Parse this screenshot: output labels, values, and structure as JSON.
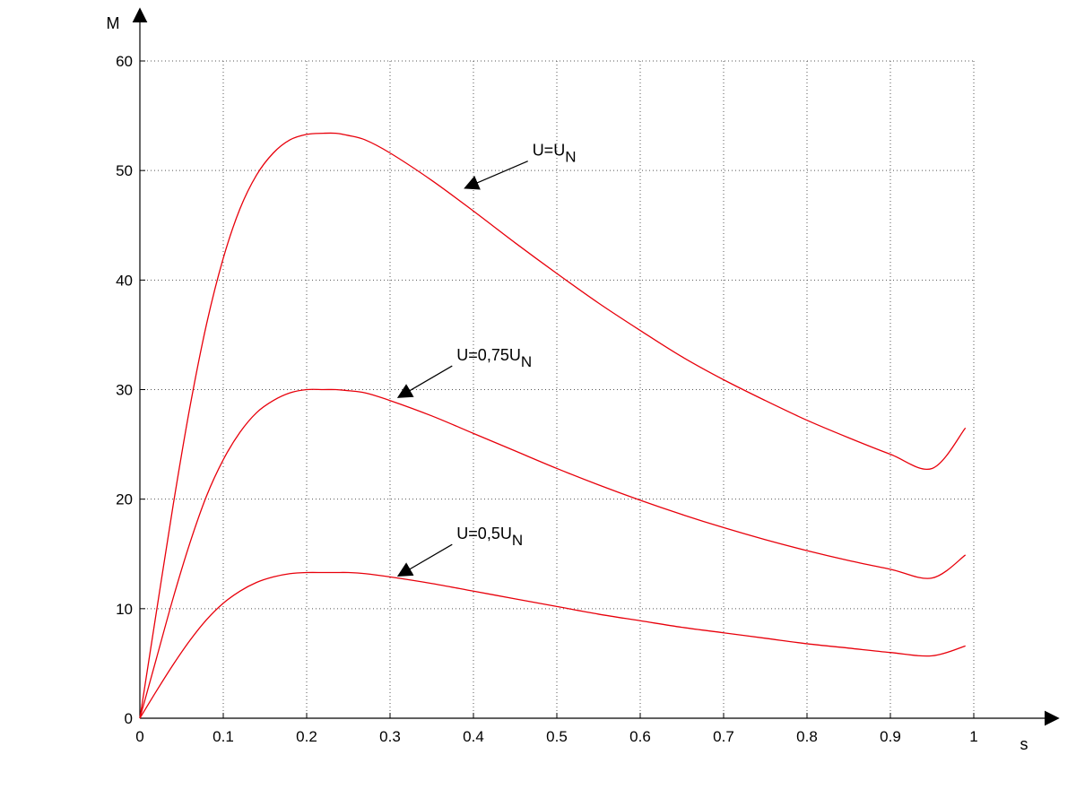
{
  "chart_data": {
    "type": "line",
    "xlabel": "s",
    "ylabel": "M",
    "xlim": [
      0,
      1
    ],
    "ylim": [
      0,
      60
    ],
    "xticks": [
      0,
      0.1,
      0.2,
      0.3,
      0.4,
      0.5,
      0.6,
      0.7,
      0.8,
      0.9,
      1
    ],
    "xtick_labels": [
      "0",
      "0.1",
      "0.2",
      "0.3",
      "0.4",
      "0.5",
      "0.6",
      "0.7",
      "0.8",
      "0.9",
      "1"
    ],
    "yticks": [
      0,
      10,
      20,
      30,
      40,
      50,
      60
    ],
    "ytick_labels": [
      "0",
      "10",
      "20",
      "30",
      "40",
      "50",
      "60"
    ],
    "grid": true,
    "line_color": "#e8000b",
    "series": [
      {
        "annotation": {
          "main": "U=U",
          "sub": "N",
          "arrow_to": [
            0.39,
            48.4
          ]
        },
        "x": [
          0,
          0.02,
          0.04,
          0.06,
          0.08,
          0.1,
          0.12,
          0.14,
          0.16,
          0.18,
          0.2,
          0.22,
          0.235,
          0.25,
          0.27,
          0.3,
          0.35,
          0.4,
          0.45,
          0.5,
          0.55,
          0.6,
          0.65,
          0.7,
          0.75,
          0.8,
          0.85,
          0.9,
          0.95,
          0.99
        ],
        "y": [
          0,
          9.8,
          19.5,
          28.4,
          36.0,
          42.0,
          46.5,
          49.6,
          51.6,
          52.8,
          53.3,
          53.4,
          53.4,
          53.2,
          52.8,
          51.6,
          49.1,
          46.3,
          43.4,
          40.6,
          37.9,
          35.4,
          33.0,
          30.9,
          29.0,
          27.2,
          25.6,
          24.1,
          22.8,
          26.5
        ]
      },
      {
        "annotation": {
          "main": "U=0,75U",
          "sub": "N",
          "arrow_to": [
            0.31,
            29.3
          ]
        },
        "x": [
          0,
          0.02,
          0.04,
          0.06,
          0.08,
          0.1,
          0.12,
          0.14,
          0.16,
          0.18,
          0.2,
          0.22,
          0.235,
          0.25,
          0.27,
          0.3,
          0.35,
          0.4,
          0.45,
          0.5,
          0.55,
          0.6,
          0.65,
          0.7,
          0.75,
          0.8,
          0.85,
          0.9,
          0.95,
          0.99
        ],
        "y": [
          0,
          5.5,
          11.0,
          16.0,
          20.3,
          23.6,
          26.1,
          27.9,
          29.0,
          29.7,
          30.0,
          30.0,
          30.0,
          29.9,
          29.7,
          29.0,
          27.6,
          26.0,
          24.4,
          22.8,
          21.3,
          19.9,
          18.6,
          17.4,
          16.3,
          15.3,
          14.4,
          13.6,
          12.8,
          14.9
        ]
      },
      {
        "annotation": {
          "main": "U=0,5U",
          "sub": "N",
          "arrow_to": [
            0.31,
            13.0
          ]
        },
        "x": [
          0,
          0.02,
          0.04,
          0.06,
          0.08,
          0.1,
          0.12,
          0.14,
          0.16,
          0.18,
          0.2,
          0.22,
          0.235,
          0.25,
          0.27,
          0.3,
          0.35,
          0.4,
          0.45,
          0.5,
          0.55,
          0.6,
          0.65,
          0.7,
          0.75,
          0.8,
          0.85,
          0.9,
          0.95,
          0.99
        ],
        "y": [
          0,
          2.5,
          4.9,
          7.1,
          9.0,
          10.5,
          11.6,
          12.4,
          12.9,
          13.2,
          13.3,
          13.3,
          13.3,
          13.3,
          13.2,
          12.9,
          12.3,
          11.6,
          10.9,
          10.2,
          9.5,
          8.9,
          8.3,
          7.8,
          7.3,
          6.8,
          6.4,
          6.0,
          5.7,
          6.6
        ]
      }
    ]
  }
}
